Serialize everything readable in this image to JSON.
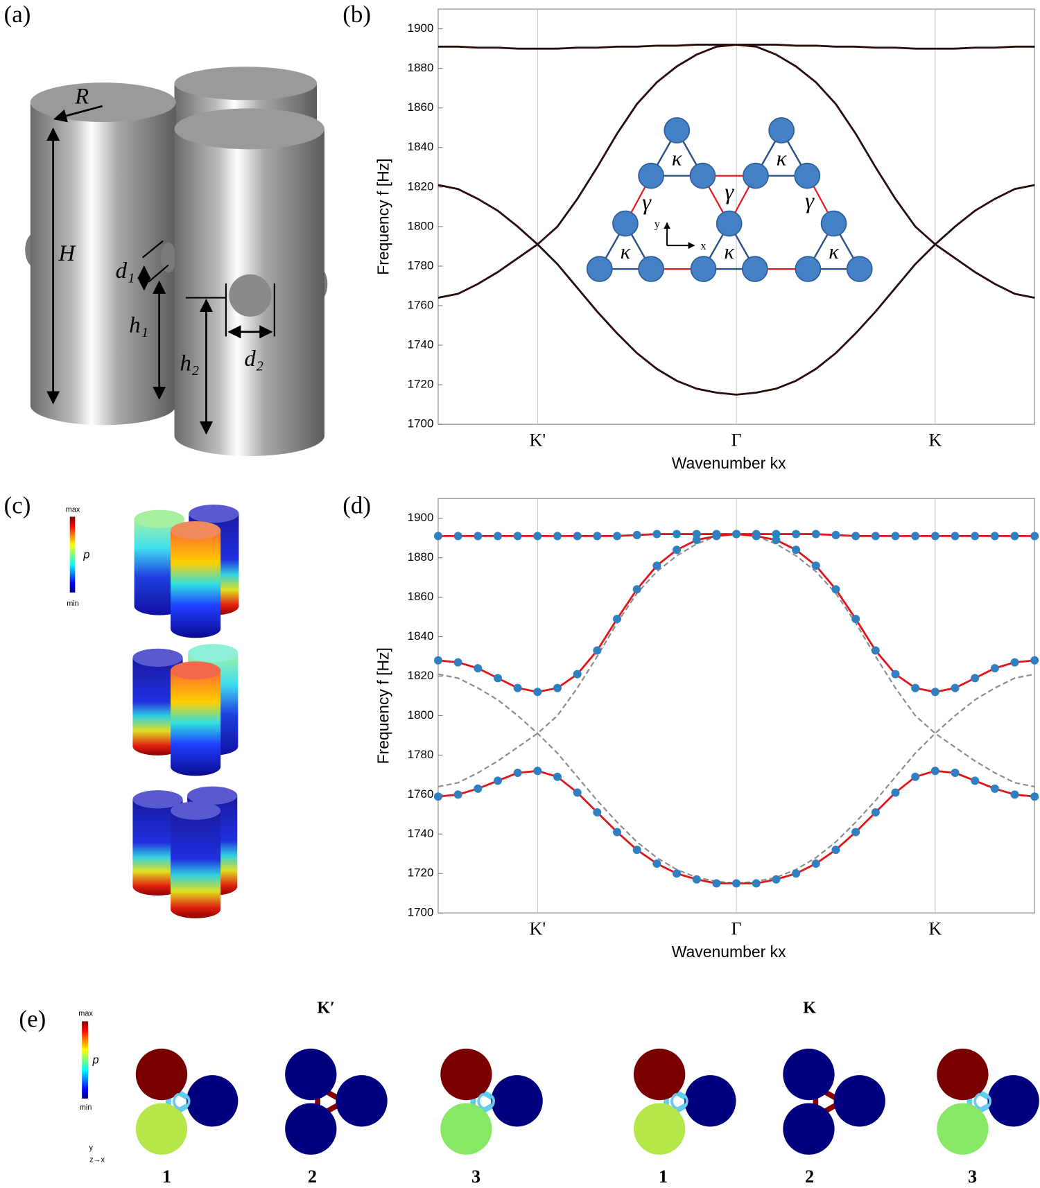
{
  "panel_labels": [
    "(a)",
    "(b)",
    "(c)",
    "(d)",
    "(e)"
  ],
  "panel_a": {
    "labels": [
      "R",
      "H",
      "d₁",
      "h₁",
      "h₂",
      "d₂"
    ]
  },
  "chart_data": [
    {
      "type": "line",
      "xlabel": "Wavenumber kx",
      "ylabel": "Frequency f [Hz]",
      "xlim": [
        -1.5,
        1.5
      ],
      "ylim": [
        1700,
        1910
      ],
      "xticks": [
        {
          "value": -1,
          "label": "K'"
        },
        {
          "value": 0,
          "label": "Γ"
        },
        {
          "value": 1,
          "label": "K"
        }
      ],
      "yticks": [
        1700,
        1720,
        1740,
        1760,
        1780,
        1800,
        1820,
        1840,
        1860,
        1880,
        1900
      ],
      "grid": true,
      "x": [
        -1.5,
        -1.4,
        -1.3,
        -1.2,
        -1.1,
        -1.0,
        -0.9,
        -0.8,
        -0.7,
        -0.6,
        -0.5,
        -0.4,
        -0.3,
        -0.2,
        -0.1,
        0,
        0.1,
        0.2,
        0.3,
        0.4,
        0.5,
        0.6,
        0.7,
        0.8,
        0.9,
        1.0,
        1.1,
        1.2,
        1.3,
        1.4,
        1.5
      ],
      "series": [
        {
          "color": "#2a0d0d",
          "values": [
            1891,
            1891,
            1890.5,
            1890.5,
            1890,
            1890,
            1890,
            1890.5,
            1890.5,
            1891,
            1891,
            1891.5,
            1891.5,
            1892,
            1892,
            1892,
            1892,
            1892,
            1891.5,
            1891.5,
            1891,
            1891,
            1890.5,
            1890.5,
            1890,
            1890,
            1890,
            1890.5,
            1890.5,
            1891,
            1891
          ]
        },
        {
          "color": "#2a0d0d",
          "values": [
            1764,
            1766,
            1771,
            1777,
            1784,
            1791,
            1800,
            1814,
            1830,
            1847,
            1862,
            1873,
            1881,
            1887,
            1891,
            1892,
            1891,
            1887,
            1881,
            1873,
            1862,
            1847,
            1830,
            1814,
            1800,
            1791,
            1784,
            1777,
            1771,
            1766,
            1764
          ]
        },
        {
          "color": "#2a0d0d",
          "values": [
            1821,
            1819,
            1814,
            1808,
            1800,
            1791,
            1781,
            1769,
            1757,
            1746,
            1736,
            1728,
            1722,
            1718,
            1716,
            1715,
            1716,
            1718,
            1722,
            1728,
            1736,
            1746,
            1757,
            1769,
            1781,
            1791,
            1800,
            1808,
            1814,
            1819,
            1821
          ]
        }
      ],
      "inset": {
        "kappa": [
          "κ",
          "κ",
          "κ",
          "κ",
          "κ"
        ],
        "gamma": [
          "γ",
          "γ",
          "γ"
        ],
        "axes": [
          "y",
          "x"
        ]
      }
    },
    {
      "type": "line",
      "xlabel": "Wavenumber kx",
      "ylabel": "Frequency f [Hz]",
      "xlim": [
        -1.5,
        1.5
      ],
      "ylim": [
        1700,
        1910
      ],
      "xticks": [
        {
          "value": -1,
          "label": "K'"
        },
        {
          "value": 0,
          "label": "Γ"
        },
        {
          "value": 1,
          "label": "K"
        }
      ],
      "yticks": [
        1700,
        1720,
        1740,
        1760,
        1780,
        1800,
        1820,
        1840,
        1860,
        1880,
        1900
      ],
      "grid": true,
      "x": [
        -1.5,
        -1.4,
        -1.3,
        -1.2,
        -1.1,
        -1.0,
        -0.9,
        -0.8,
        -0.7,
        -0.6,
        -0.5,
        -0.4,
        -0.3,
        -0.2,
        -0.1,
        0,
        0.1,
        0.2,
        0.3,
        0.4,
        0.5,
        0.6,
        0.7,
        0.8,
        0.9,
        1.0,
        1.1,
        1.2,
        1.3,
        1.4,
        1.5
      ],
      "series": [
        {
          "color": "#8c8c8c",
          "dashed": true,
          "values": [
            1764,
            1766,
            1771,
            1777,
            1784,
            1791,
            1800,
            1814,
            1830,
            1847,
            1862,
            1873,
            1881,
            1887,
            1891,
            1892,
            1891,
            1887,
            1881,
            1873,
            1862,
            1847,
            1830,
            1814,
            1800,
            1791,
            1784,
            1777,
            1771,
            1766,
            1764
          ]
        },
        {
          "color": "#8c8c8c",
          "dashed": true,
          "values": [
            1821,
            1819,
            1814,
            1808,
            1800,
            1791,
            1781,
            1769,
            1757,
            1746,
            1736,
            1728,
            1722,
            1718,
            1716,
            1715,
            1716,
            1718,
            1722,
            1728,
            1736,
            1746,
            1757,
            1769,
            1781,
            1791,
            1800,
            1808,
            1814,
            1819,
            1821
          ]
        },
        {
          "color": "#e0161b",
          "marker_color": "#2f7fc1",
          "markers": true,
          "values": [
            1891,
            1891,
            1891,
            1891,
            1891,
            1891,
            1891,
            1891,
            1891,
            1891,
            1891.5,
            1892,
            1892,
            1892,
            1892,
            1892,
            1892,
            1892,
            1892,
            1892,
            1891.5,
            1891,
            1891,
            1891,
            1891,
            1891,
            1891,
            1891,
            1891,
            1891,
            1891
          ]
        },
        {
          "color": "#e0161b",
          "marker_color": "#2f7fc1",
          "markers": true,
          "values": [
            1828,
            1827,
            1824,
            1819,
            1814,
            1812,
            1814,
            1821,
            1833,
            1849,
            1864,
            1876,
            1884,
            1889,
            1891,
            1892,
            1891,
            1889,
            1884,
            1876,
            1864,
            1849,
            1833,
            1821,
            1814,
            1812,
            1814,
            1819,
            1824,
            1827,
            1828
          ]
        },
        {
          "color": "#e0161b",
          "marker_color": "#2f7fc1",
          "markers": true,
          "values": [
            1759,
            1760,
            1763,
            1767,
            1771,
            1772,
            1769,
            1761,
            1751,
            1741,
            1732,
            1725,
            1720,
            1717,
            1715,
            1715,
            1715,
            1717,
            1720,
            1725,
            1732,
            1741,
            1751,
            1761,
            1769,
            1772,
            1771,
            1767,
            1763,
            1760,
            1759
          ]
        }
      ]
    }
  ],
  "panel_c": {
    "colorbar": [
      "max",
      "p",
      "min"
    ]
  },
  "panel_e": {
    "colorbar": [
      "max",
      "p",
      "min"
    ],
    "groups": [
      "K′",
      "K"
    ],
    "modes": [
      "1",
      "2",
      "3",
      "1",
      "2",
      "3"
    ],
    "axes": [
      "y",
      "z→x"
    ]
  }
}
